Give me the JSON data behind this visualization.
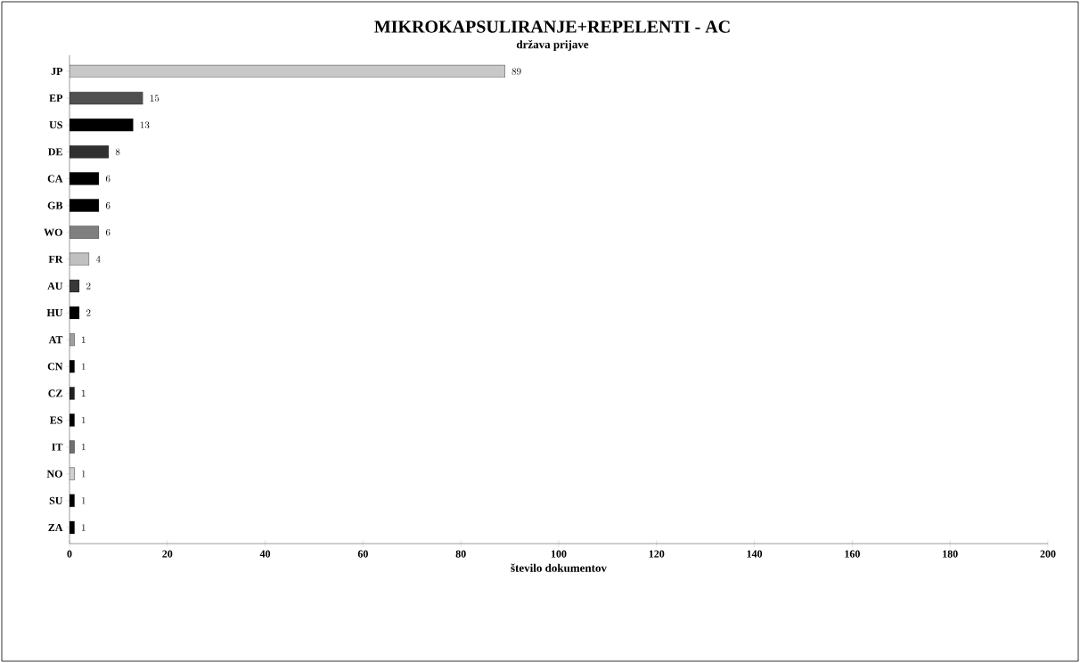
{
  "chart_data": {
    "type": "bar",
    "orientation": "horizontal",
    "title": "MIKROKAPSULIRANJE+REPELENTI - AC",
    "subtitle": "država prijave",
    "xlabel": "število dokumentov",
    "categories": [
      "JP",
      "EP",
      "US",
      "DE",
      "CA",
      "GB",
      "WO",
      "FR",
      "AU",
      "HU",
      "AT",
      "CN",
      "CZ",
      "ES",
      "IT",
      "NO",
      "SU",
      "ZA"
    ],
    "values": [
      89,
      15,
      13,
      8,
      6,
      6,
      6,
      4,
      2,
      2,
      1,
      1,
      1,
      1,
      1,
      1,
      1,
      1
    ],
    "colors": [
      "#c8c8c8",
      "#505050",
      "#000000",
      "#303030",
      "#000000",
      "#000000",
      "#808080",
      "#c0c0c0",
      "#383838",
      "#000000",
      "#a0a0a0",
      "#000000",
      "#202020",
      "#000000",
      "#707070",
      "#d0d0d0",
      "#000000",
      "#000000"
    ],
    "xlim": [
      0,
      200
    ],
    "xticks": [
      0,
      20,
      40,
      60,
      80,
      100,
      120,
      140,
      160,
      180,
      200
    ],
    "data_labels": true,
    "grid": false
  }
}
